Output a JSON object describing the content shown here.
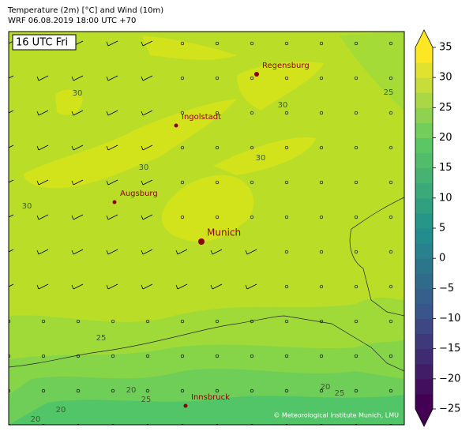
{
  "header": {
    "title_line1": "Temperature (2m) [°C] and Wind (10m)",
    "title_line2": "WRF 06.08.2019 18:00 UTC +70"
  },
  "map": {
    "time_label": "16 UTC Fri",
    "cities": [
      {
        "name": "Regensburg"
      },
      {
        "name": "Ingolstadt"
      },
      {
        "name": "Augsburg"
      },
      {
        "name": "Munich"
      },
      {
        "name": "Innsbruck"
      }
    ],
    "contour_labels": [
      "30",
      "30",
      "30",
      "30",
      "30",
      "25",
      "25",
      "25",
      "25",
      "20",
      "20",
      "20",
      "20"
    ],
    "copyright": "© Meteorological Institute Munich, LMU"
  },
  "colorbar": {
    "colormap": "viridis",
    "levels": [
      -25,
      -22.5,
      -20,
      -17.5,
      -15,
      -12.5,
      -10,
      -7.5,
      -5,
      -2.5,
      0,
      2.5,
      5,
      7.5,
      10,
      12.5,
      15,
      17.5,
      20,
      22.5,
      25,
      27.5,
      30,
      32.5,
      35
    ],
    "ticks": [
      35,
      30,
      25,
      20,
      15,
      10,
      5,
      0,
      {
        "value": -5,
        "label": "−5"
      },
      {
        "value": -10,
        "label": "−10"
      },
      {
        "value": -15,
        "label": "−15"
      },
      {
        "value": -20,
        "label": "−20"
      },
      {
        "value": -25,
        "label": "−25"
      }
    ]
  }
}
